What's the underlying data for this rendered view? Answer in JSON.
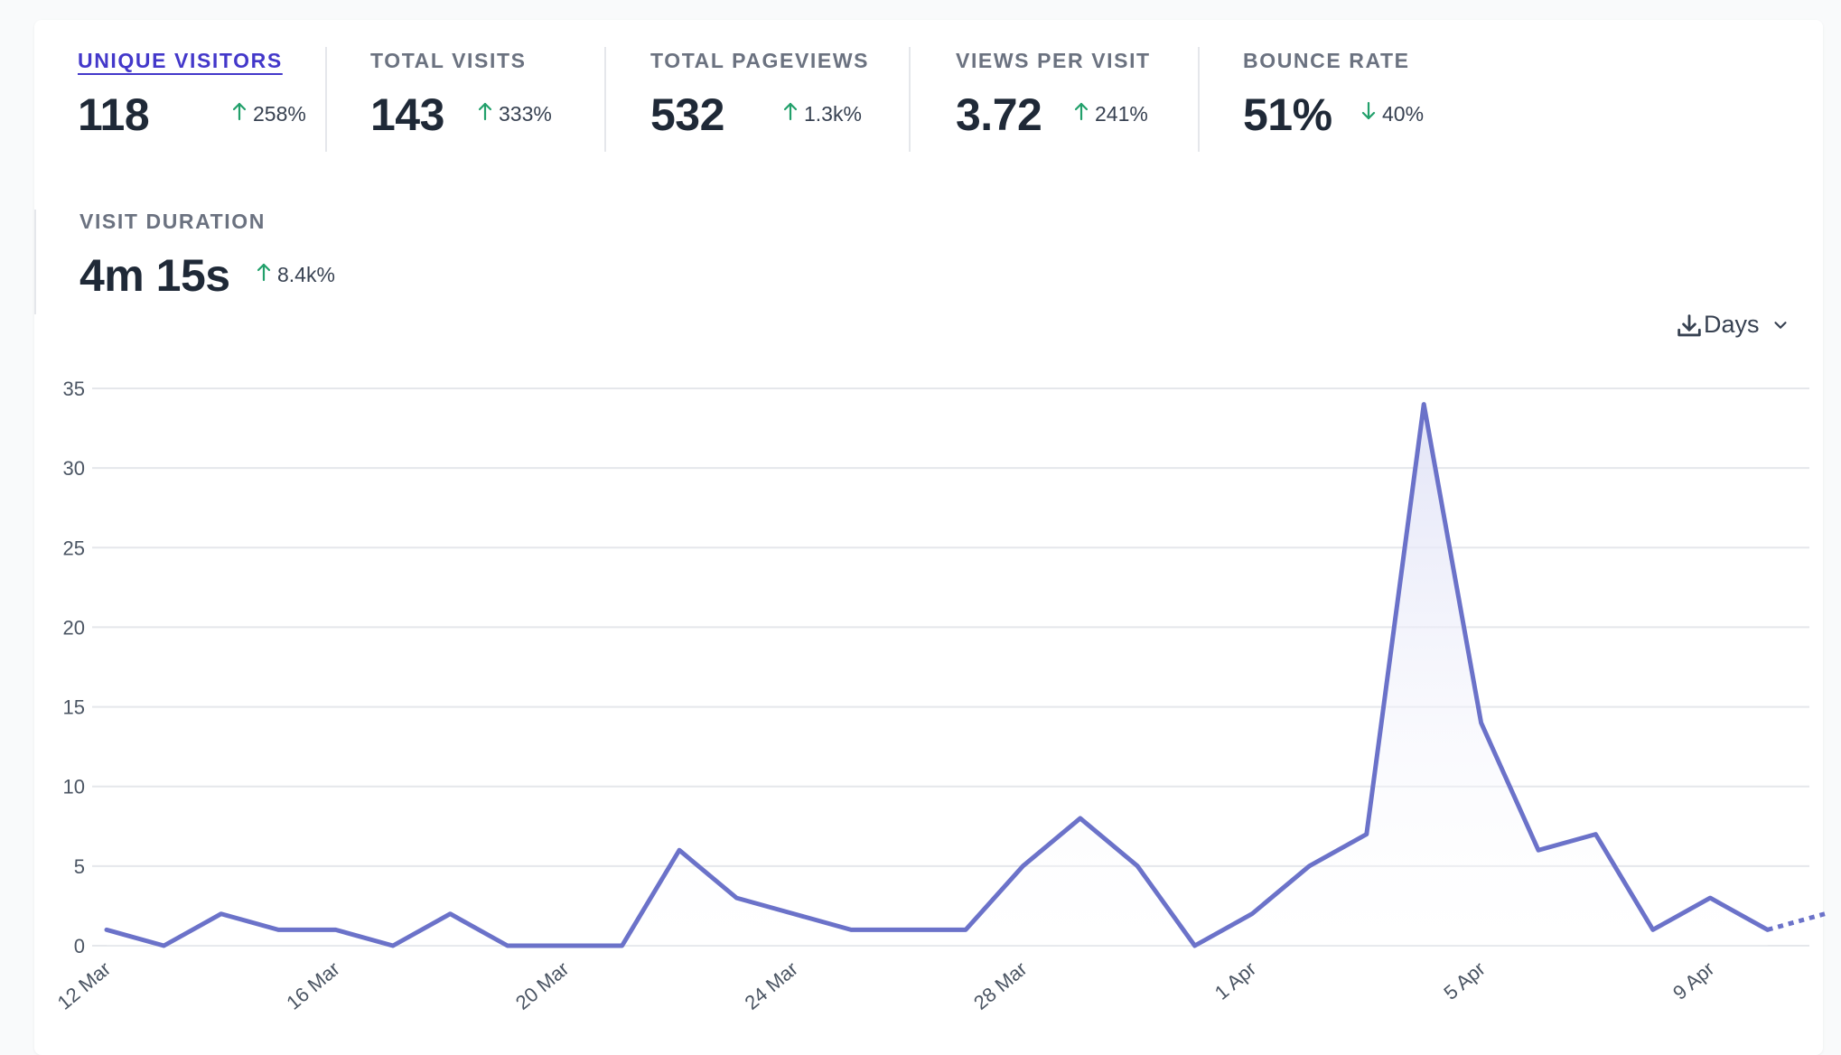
{
  "stats": [
    {
      "label": "UNIQUE VISITORS",
      "value": "118",
      "change": "258%",
      "direction": "up",
      "active": true
    },
    {
      "label": "TOTAL VISITS",
      "value": "143",
      "change": "333%",
      "direction": "up",
      "active": false
    },
    {
      "label": "TOTAL PAGEVIEWS",
      "value": "532",
      "change": "1.3k%",
      "direction": "up",
      "active": false
    },
    {
      "label": "VIEWS PER VISIT",
      "value": "3.72",
      "change": "241%",
      "direction": "up",
      "active": false
    },
    {
      "label": "BOUNCE RATE",
      "value": "51%",
      "change": "40%",
      "direction": "down",
      "active": false
    },
    {
      "label": "VISIT DURATION",
      "value": "4m 15s",
      "change": "8.4k%",
      "direction": "up",
      "active": false
    }
  ],
  "controls": {
    "interval_label": "Days",
    "download_icon": "download-icon",
    "chevron_icon": "chevron-down-icon"
  },
  "colors": {
    "line": "#6b72c9",
    "fill_top": "#dfe1f6",
    "grid": "#e5e7eb",
    "positive": "#22a06b",
    "active_label": "#4338ca"
  },
  "chart_data": {
    "type": "area",
    "series": [
      {
        "name": "Unique visitors",
        "values": [
          1,
          0,
          2,
          1,
          1,
          0,
          2,
          0,
          0,
          0,
          6,
          3,
          2,
          1,
          1,
          1,
          5,
          8,
          5,
          0,
          2,
          5,
          7,
          34,
          14,
          6,
          7,
          1,
          3,
          1,
          2
        ]
      }
    ],
    "x": [
      "12 Mar",
      "13 Mar",
      "14 Mar",
      "15 Mar",
      "16 Mar",
      "17 Mar",
      "18 Mar",
      "19 Mar",
      "20 Mar",
      "21 Mar",
      "22 Mar",
      "23 Mar",
      "24 Mar",
      "25 Mar",
      "26 Mar",
      "27 Mar",
      "28 Mar",
      "29 Mar",
      "30 Mar",
      "31 Mar",
      "1 Apr",
      "2 Apr",
      "3 Apr",
      "4 Apr",
      "5 Apr",
      "6 Apr",
      "7 Apr",
      "8 Apr",
      "9 Apr",
      "10 Apr",
      "11 Apr"
    ],
    "x_tick_labels": [
      "12 Mar",
      "16 Mar",
      "20 Mar",
      "24 Mar",
      "28 Mar",
      "1 Apr",
      "5 Apr",
      "9 Apr"
    ],
    "y_ticks": [
      0,
      5,
      10,
      15,
      20,
      25,
      30,
      35
    ],
    "ylim": [
      0,
      35
    ],
    "incomplete_last_segment": true,
    "xlabel": "",
    "ylabel": ""
  }
}
